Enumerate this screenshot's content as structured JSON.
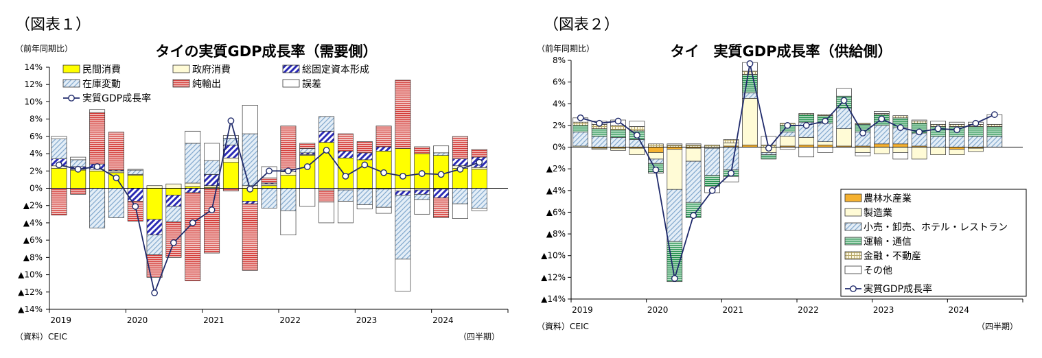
{
  "figures": [
    {
      "label": "（図表１）"
    },
    {
      "label": "（図表２）"
    }
  ],
  "chart_data": [
    {
      "type": "bar",
      "stacked": true,
      "title": "タイの実質GDP成長率（需要側）",
      "ylabel": "（前年同期比）",
      "xlabel": "（四半期）",
      "source": "（資料）CEIC",
      "ylim": [
        -14,
        14
      ],
      "yticks": [
        14,
        12,
        10,
        8,
        6,
        4,
        2,
        0,
        -2,
        -4,
        -6,
        -8,
        -10,
        -12,
        -14
      ],
      "ytick_labels": [
        "14%",
        "12%",
        "10%",
        "8%",
        "6%",
        "4%",
        "2%",
        "0%",
        "▲2%",
        "▲4%",
        "▲6%",
        "▲8%",
        "▲10%",
        "▲12%",
        "▲14%"
      ],
      "year_labels": [
        "2019",
        "2020",
        "2021",
        "2022",
        "2023",
        "2024"
      ],
      "categories": [
        "2019Q1",
        "2019Q2",
        "2019Q3",
        "2019Q4",
        "2020Q1",
        "2020Q2",
        "2020Q3",
        "2020Q4",
        "2021Q1",
        "2021Q2",
        "2021Q3",
        "2021Q4",
        "2022Q1",
        "2022Q2",
        "2022Q3",
        "2022Q4",
        "2023Q1",
        "2023Q2",
        "2023Q3",
        "2023Q4",
        "2024Q1",
        "2024Q2",
        "2024Q3",
        "2024Q4"
      ],
      "legend_position": "top-left",
      "series": [
        {
          "name": "民間消費",
          "style": "yellow",
          "values": [
            2.3,
            2.1,
            2.0,
            1.8,
            1.5,
            -3.6,
            -0.8,
            0.2,
            0.1,
            3.0,
            -1.5,
            0.3,
            1.5,
            3.8,
            5.3,
            3.5,
            3.3,
            4.3,
            4.6,
            4.0,
            3.8,
            2.3,
            2.2,
            null
          ]
        },
        {
          "name": "政府消費",
          "style": "cream",
          "values": [
            0.3,
            0.1,
            0.2,
            0.2,
            0.1,
            0.3,
            0.5,
            0.4,
            0.2,
            0.5,
            0.3,
            0.2,
            0.4,
            0.1,
            -0.2,
            -0.2,
            -0.1,
            -0.1,
            -0.3,
            -0.2,
            -0.1,
            0.3,
            0.2,
            null
          ]
        },
        {
          "name": "総固定資本形成",
          "style": "hatch",
          "values": [
            0.8,
            0.3,
            0.6,
            0.1,
            -1.5,
            -1.8,
            -1.3,
            -0.5,
            1.3,
            1.5,
            -0.3,
            0.1,
            0.3,
            0.2,
            1.3,
            0.8,
            0.8,
            0.5,
            -0.5,
            -0.5,
            -1.0,
            0.8,
            1.2,
            null
          ]
        },
        {
          "name": "在庫変動",
          "style": "blue",
          "values": [
            2.3,
            0.8,
            -4.6,
            -3.4,
            0.5,
            -2.3,
            -1.8,
            4.6,
            1.6,
            0.8,
            6.0,
            -2.3,
            -2.6,
            0.5,
            1.7,
            -1.3,
            -1.8,
            -2.1,
            -7.4,
            -0.6,
            0.3,
            -1.8,
            -2.3,
            null
          ]
        },
        {
          "name": "純輸出",
          "style": "red",
          "values": [
            -3.1,
            -0.7,
            6.0,
            4.4,
            -2.3,
            -2.6,
            -4.1,
            -10.2,
            -7.5,
            -0.3,
            -7.7,
            0.6,
            5.0,
            0.6,
            -1.4,
            2.0,
            1.3,
            2.4,
            7.9,
            0.8,
            -2.3,
            2.6,
            0.9,
            null
          ]
        },
        {
          "name": "誤差",
          "style": "white",
          "values": [
            0.3,
            0.3,
            0.3,
            0.0,
            0.1,
            0.0,
            0.0,
            1.4,
            2.0,
            0.3,
            3.3,
            1.3,
            -2.8,
            -2.1,
            -2.4,
            -2.5,
            -0.5,
            -0.7,
            -3.7,
            -1.7,
            0.8,
            -1.7,
            -0.3,
            null
          ]
        }
      ],
      "line": {
        "name": "実質GDP成長率",
        "values": [
          2.7,
          2.2,
          2.5,
          1.2,
          -2.1,
          -12.1,
          -6.3,
          -4.0,
          -2.5,
          7.8,
          -0.1,
          2.0,
          2.0,
          2.5,
          4.4,
          1.4,
          2.7,
          1.8,
          1.4,
          1.7,
          1.6,
          2.2,
          3.0,
          null
        ]
      }
    },
    {
      "type": "bar",
      "stacked": true,
      "title": "タイ　実質GDP成長率（供給側）",
      "ylabel": "（前年同期比）",
      "xlabel": "（四半期）",
      "source": "（資料）CEIC",
      "ylim": [
        -14,
        8
      ],
      "yticks": [
        8,
        6,
        4,
        2,
        0,
        -2,
        -4,
        -6,
        -8,
        -10,
        -12,
        -14
      ],
      "ytick_labels": [
        "8%",
        "6%",
        "4%",
        "2%",
        "0%",
        "▲2%",
        "▲4%",
        "▲6%",
        "▲8%",
        "▲10%",
        "▲12%",
        "▲14%"
      ],
      "year_labels": [
        "2019",
        "2020",
        "2021",
        "2022",
        "2023",
        "2024"
      ],
      "categories": [
        "2019Q1",
        "2019Q2",
        "2019Q3",
        "2019Q4",
        "2020Q1",
        "2020Q2",
        "2020Q3",
        "2020Q4",
        "2021Q1",
        "2021Q2",
        "2021Q3",
        "2021Q4",
        "2022Q1",
        "2022Q2",
        "2022Q3",
        "2022Q4",
        "2023Q1",
        "2023Q2",
        "2023Q3",
        "2023Q4",
        "2024Q1",
        "2024Q2",
        "2024Q3",
        "2024Q4"
      ],
      "legend_position": "bottom-right",
      "series": [
        {
          "name": "農林水産業",
          "style": "orange",
          "values": [
            0.0,
            -0.1,
            -0.1,
            -0.1,
            -0.5,
            -0.2,
            -0.1,
            0.0,
            0.1,
            0.2,
            0.0,
            0.1,
            0.2,
            0.2,
            0.1,
            0.1,
            0.3,
            0.3,
            0.1,
            0.0,
            -0.2,
            -0.1,
            0.0,
            null
          ]
        },
        {
          "name": "製造業",
          "style": "cream",
          "values": [
            0.1,
            -0.1,
            -0.2,
            -0.6,
            -0.6,
            -3.7,
            -1.2,
            -0.1,
            0.3,
            4.3,
            -0.5,
            0.9,
            0.7,
            0.3,
            1.6,
            -0.5,
            -0.6,
            -0.5,
            -1.1,
            -0.7,
            -0.5,
            -0.3,
            0.0,
            null
          ]
        },
        {
          "name": "小売・卸売、ホテル・レストラン",
          "style": "blue",
          "values": [
            1.3,
            1.0,
            0.9,
            0.7,
            -0.4,
            -4.8,
            -3.8,
            -2.5,
            -2.1,
            0.5,
            -0.2,
            0.4,
            1.4,
            1.7,
            1.9,
            1.3,
            1.7,
            1.5,
            1.2,
            1.0,
            1.0,
            1.0,
            1.0,
            null
          ]
        },
        {
          "name": "運輸・通信",
          "style": "green",
          "values": [
            0.6,
            0.7,
            0.7,
            0.8,
            -0.8,
            -3.7,
            -1.4,
            -1.0,
            -0.6,
            1.7,
            -0.4,
            0.6,
            0.7,
            0.7,
            1.1,
            0.7,
            1.0,
            0.9,
            0.9,
            0.9,
            0.9,
            0.9,
            0.9,
            null
          ]
        },
        {
          "name": "金融・不動産",
          "style": "gridtan",
          "values": [
            0.3,
            0.4,
            0.4,
            0.4,
            0.3,
            0.2,
            0.2,
            0.2,
            0.3,
            0.3,
            0.2,
            0.2,
            0.1,
            0.1,
            0.0,
            0.1,
            0.1,
            0.2,
            0.2,
            0.2,
            0.2,
            0.2,
            0.2,
            null
          ]
        },
        {
          "name": "その他",
          "style": "white",
          "values": [
            0.4,
            0.3,
            0.5,
            0.5,
            -0.1,
            0.1,
            0.1,
            -0.6,
            -0.5,
            0.8,
            0.8,
            -0.2,
            -0.9,
            -0.5,
            0.7,
            -0.3,
            0.2,
            -0.6,
            0.1,
            0.3,
            0.2,
            0.2,
            0.9,
            null
          ]
        }
      ],
      "line": {
        "name": "実質GDP成長率",
        "values": [
          2.7,
          2.2,
          2.4,
          1.1,
          -2.1,
          -12.1,
          -6.3,
          -4.0,
          -2.4,
          7.7,
          -0.1,
          2.0,
          2.0,
          2.4,
          4.3,
          1.3,
          2.6,
          1.8,
          1.4,
          1.7,
          1.6,
          2.2,
          3.0,
          null
        ]
      }
    }
  ]
}
